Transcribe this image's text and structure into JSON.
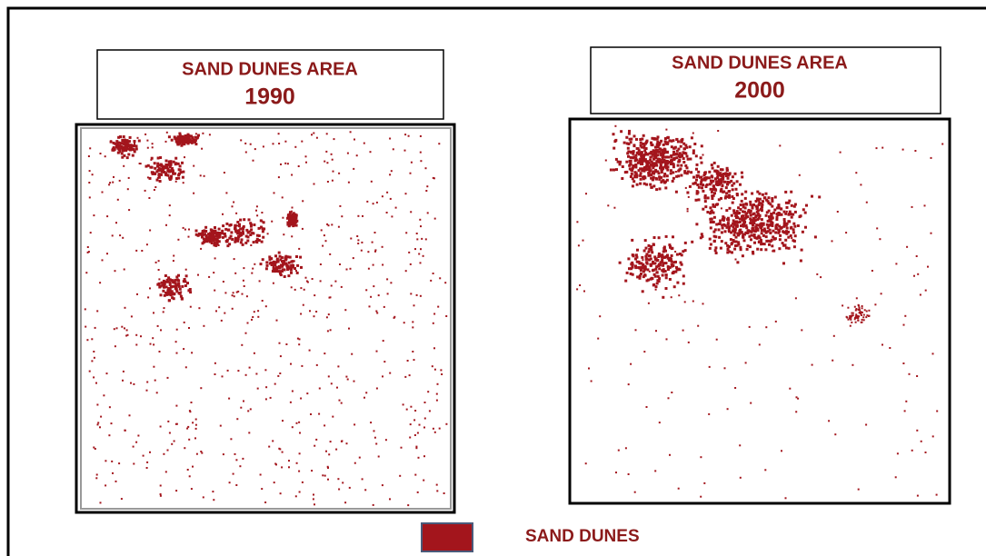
{
  "panels": [
    {
      "title": "SAND DUNES AREA",
      "year": "1990"
    },
    {
      "title": "SAND DUNES AREA",
      "year": "2000"
    }
  ],
  "legend": {
    "label": "SAND DUNES",
    "color": "#a3151c"
  }
}
